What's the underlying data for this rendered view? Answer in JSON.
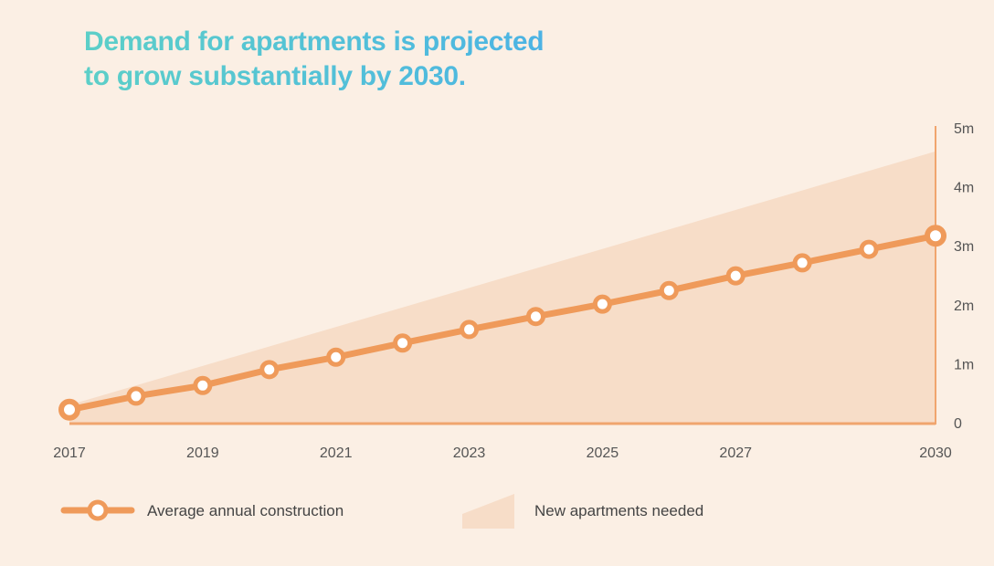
{
  "title_line1": "Demand for apartments is projected",
  "title_line2": "to grow substantially by 2030.",
  "colors": {
    "background": "#fbefe4",
    "line": "#ef9a5a",
    "area": "#f7ddc8",
    "axis": "#f0a56e",
    "text": "#555555",
    "marker_fill": "#ffffff"
  },
  "chart_data": {
    "type": "line",
    "title": "Demand for apartments is projected to grow substantially by 2030.",
    "xlabel": "",
    "ylabel": "",
    "x": [
      2017,
      2018,
      2019,
      2020,
      2021,
      2022,
      2023,
      2024,
      2025,
      2026,
      2027,
      2028,
      2029,
      2030
    ],
    "xlim": [
      2017,
      2030
    ],
    "ylim": [
      0,
      5
    ],
    "y_unit": "millions",
    "x_tick_values": [
      2017,
      2019,
      2021,
      2023,
      2025,
      2027,
      2030
    ],
    "x_tick_labels": [
      "2017",
      "2019",
      "2021",
      "2023",
      "2025",
      "2027",
      "2030"
    ],
    "y_tick_values": [
      0,
      1,
      2,
      3,
      4,
      5
    ],
    "y_tick_labels": [
      "0",
      "1m",
      "2m",
      "3m",
      "4m",
      "5m"
    ],
    "y_axis_position": "right",
    "grid": false,
    "legend_position": "bottom-left",
    "series": [
      {
        "name": "Average annual construction",
        "type": "line",
        "values": [
          0.22,
          0.45,
          0.63,
          0.9,
          1.11,
          1.35,
          1.58,
          1.8,
          2.01,
          2.24,
          2.49,
          2.71,
          2.94,
          3.17
        ]
      },
      {
        "name": "New apartments needed",
        "type": "area",
        "x": [
          2017,
          2030
        ],
        "values": [
          0.3,
          4.6
        ]
      }
    ]
  },
  "legend": [
    {
      "label": "Average annual construction",
      "icon": "line-marker-icon"
    },
    {
      "label": "New apartments needed",
      "icon": "area-swatch-icon"
    }
  ]
}
